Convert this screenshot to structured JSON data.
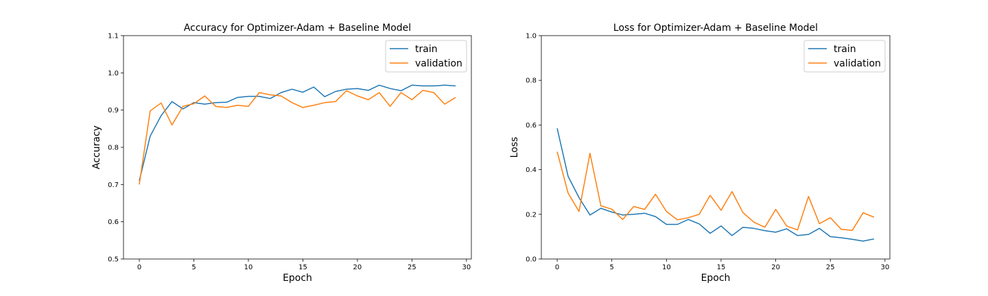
{
  "colors": {
    "train": "#1f77b4",
    "validation": "#ff7f0e"
  },
  "chart_data": [
    {
      "type": "line",
      "title": "Accuracy for Optimizer-Adam + Baseline Model",
      "xlabel": "Epoch",
      "ylabel": "Accuracy",
      "xlim": [
        -1.45,
        30.45
      ],
      "ylim": [
        0.5,
        1.1
      ],
      "xticks": [
        0,
        5,
        10,
        15,
        20,
        25,
        30
      ],
      "yticks": [
        0.5,
        0.6,
        0.7,
        0.8,
        0.9,
        1.0,
        1.1
      ],
      "yticklabels": [
        "0.5",
        "0.6",
        "0.7",
        "0.8",
        "0.9",
        "1.0",
        "1.1"
      ],
      "legend": "top-right",
      "grid": false,
      "x": [
        0,
        1,
        2,
        3,
        4,
        5,
        6,
        7,
        8,
        9,
        10,
        11,
        12,
        13,
        14,
        15,
        16,
        17,
        18,
        19,
        20,
        21,
        22,
        23,
        24,
        25,
        26,
        27,
        28,
        29
      ],
      "series": [
        {
          "name": "train",
          "values": [
            0.71,
            0.83,
            0.885,
            0.923,
            0.903,
            0.92,
            0.916,
            0.92,
            0.921,
            0.934,
            0.937,
            0.937,
            0.931,
            0.947,
            0.956,
            0.948,
            0.962,
            0.936,
            0.95,
            0.956,
            0.958,
            0.953,
            0.967,
            0.958,
            0.952,
            0.967,
            0.965,
            0.965,
            0.967,
            0.965
          ]
        },
        {
          "name": "validation",
          "values": [
            0.7,
            0.898,
            0.919,
            0.86,
            0.91,
            0.917,
            0.938,
            0.91,
            0.907,
            0.913,
            0.91,
            0.947,
            0.941,
            0.938,
            0.92,
            0.907,
            0.913,
            0.92,
            0.923,
            0.952,
            0.938,
            0.928,
            0.947,
            0.91,
            0.947,
            0.928,
            0.953,
            0.947,
            0.916,
            0.934
          ]
        }
      ]
    },
    {
      "type": "line",
      "title": "Loss for Optimizer-Adam + Baseline Model",
      "xlabel": "Epoch",
      "ylabel": "Loss",
      "xlim": [
        -1.45,
        30.45
      ],
      "ylim": [
        0.0,
        1.0
      ],
      "xticks": [
        0,
        5,
        10,
        15,
        20,
        25,
        30
      ],
      "yticks": [
        0.0,
        0.2,
        0.4,
        0.6,
        0.8,
        1.0
      ],
      "yticklabels": [
        "0.0",
        "0.2",
        "0.4",
        "0.6",
        "0.8",
        "1.0"
      ],
      "legend": "top-right",
      "grid": false,
      "x": [
        0,
        1,
        2,
        3,
        4,
        5,
        6,
        7,
        8,
        9,
        10,
        11,
        12,
        13,
        14,
        15,
        16,
        17,
        18,
        19,
        20,
        21,
        22,
        23,
        24,
        25,
        26,
        27,
        28,
        29
      ],
      "series": [
        {
          "name": "train",
          "values": [
            0.585,
            0.37,
            0.275,
            0.197,
            0.227,
            0.21,
            0.197,
            0.2,
            0.205,
            0.19,
            0.155,
            0.155,
            0.177,
            0.157,
            0.115,
            0.148,
            0.105,
            0.142,
            0.137,
            0.127,
            0.12,
            0.135,
            0.105,
            0.11,
            0.137,
            0.1,
            0.095,
            0.088,
            0.08,
            0.09
          ]
        },
        {
          "name": "validation",
          "values": [
            0.48,
            0.295,
            0.213,
            0.473,
            0.238,
            0.223,
            0.177,
            0.235,
            0.222,
            0.29,
            0.213,
            0.175,
            0.185,
            0.2,
            0.285,
            0.218,
            0.302,
            0.208,
            0.165,
            0.142,
            0.222,
            0.148,
            0.13,
            0.28,
            0.158,
            0.185,
            0.133,
            0.128,
            0.207,
            0.187
          ]
        }
      ]
    }
  ]
}
